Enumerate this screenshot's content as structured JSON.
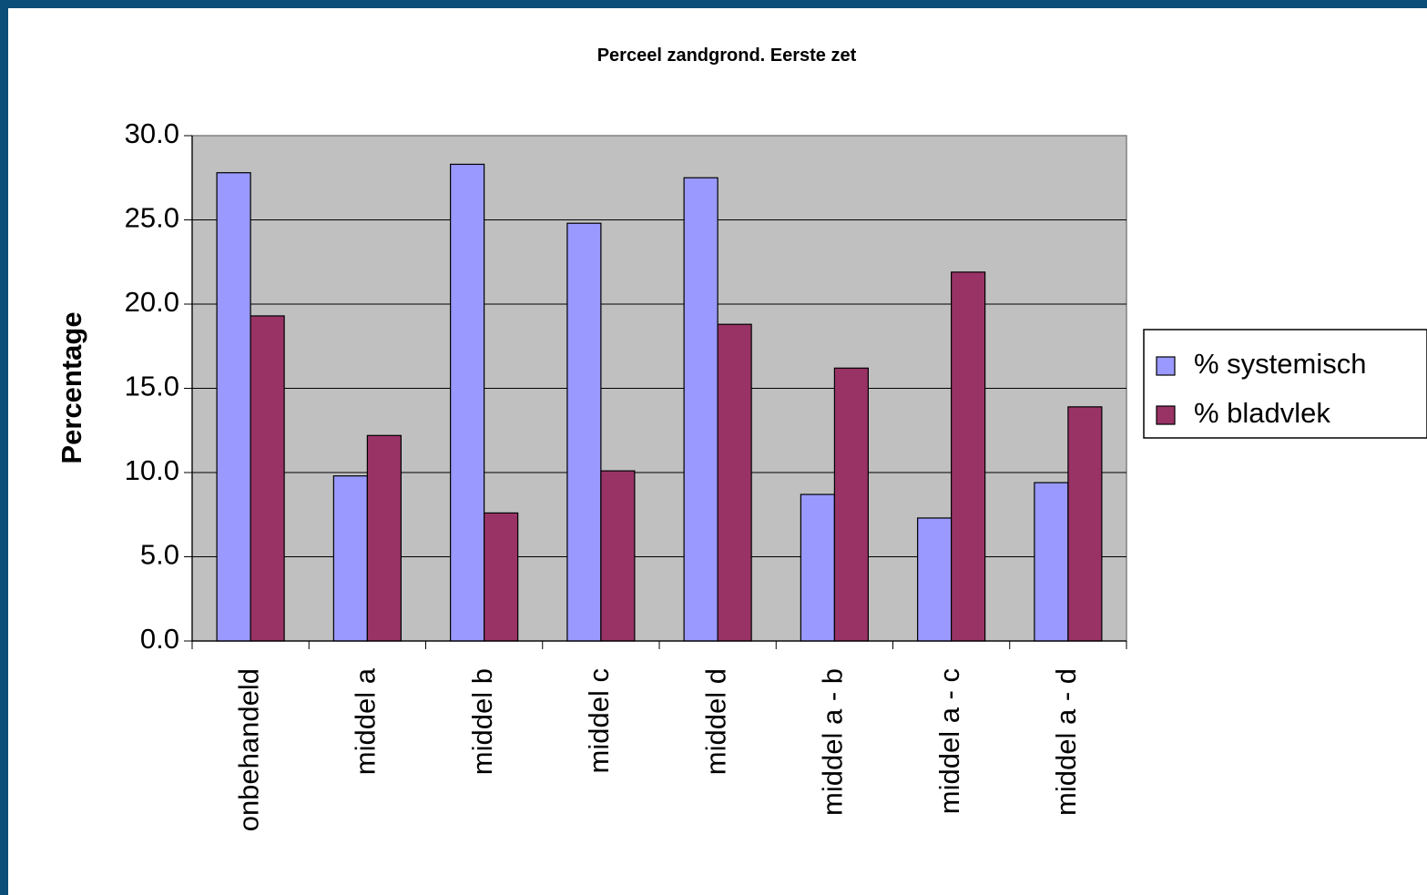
{
  "chart_data": {
    "type": "bar",
    "title": "Perceel zandgrond. Eerste zet",
    "xlabel": "",
    "ylabel": "Percentage",
    "ylim": [
      0,
      30
    ],
    "yticks": [
      "0.0",
      "5.0",
      "10.0",
      "15.0",
      "20.0",
      "25.0",
      "30.0"
    ],
    "grid": true,
    "legend_position": "right",
    "categories": [
      "onbehandeld",
      "middel a",
      "middel b",
      "middel c",
      "middel d",
      "middel a - b",
      "middel a - c",
      "middel a - d"
    ],
    "series": [
      {
        "name": "% systemisch",
        "color": "#9999ff",
        "values": [
          27.8,
          9.8,
          28.3,
          24.8,
          27.5,
          8.7,
          7.3,
          9.4
        ]
      },
      {
        "name": "% bladvlek",
        "color": "#993366",
        "values": [
          19.3,
          12.2,
          7.6,
          10.1,
          18.8,
          16.2,
          21.9,
          13.9
        ]
      }
    ],
    "plot_background": "#c0c0c0"
  }
}
